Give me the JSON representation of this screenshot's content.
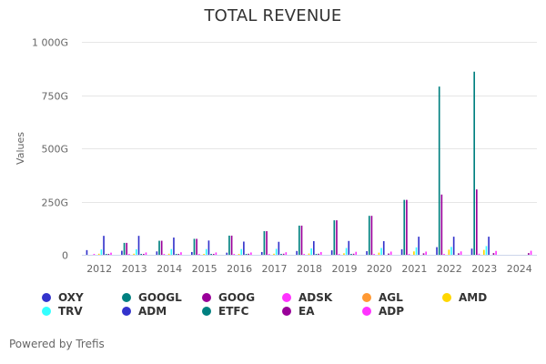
{
  "chart_data": {
    "type": "bar",
    "title": "TOTAL REVENUE",
    "xlabel": "",
    "ylabel": "Values",
    "ylim": [
      0,
      1000
    ],
    "y_unit": "G",
    "y_ticks": [
      0,
      250,
      500,
      750,
      1000
    ],
    "y_tick_labels": [
      "0",
      "250G",
      "500G",
      "750G",
      "1 000G"
    ],
    "grid": true,
    "legend_position": "bottom",
    "categories": [
      "2012",
      "2013",
      "2014",
      "2015",
      "2016",
      "2017",
      "2018",
      "2019",
      "2020",
      "2021",
      "2022",
      "2023",
      "2024"
    ],
    "series": [
      {
        "name": "OXY",
        "color": "#3333cc",
        "values": [
          22,
          19,
          16,
          13,
          10,
          13,
          18,
          21,
          17,
          26,
          36,
          29,
          null
        ]
      },
      {
        "name": "GOOGL",
        "color": "#008080",
        "values": [
          null,
          56,
          66,
          75,
          90,
          111,
          137,
          162,
          183,
          258,
          790,
          860,
          null
        ]
      },
      {
        "name": "GOOG",
        "color": "#990099",
        "values": [
          null,
          56,
          66,
          75,
          90,
          111,
          137,
          162,
          183,
          258,
          283,
          307,
          null
        ]
      },
      {
        "name": "ADSK",
        "color": "#ff33ff",
        "values": [
          2,
          2,
          2,
          3,
          2,
          2,
          2,
          3,
          4,
          4,
          4,
          5,
          null
        ]
      },
      {
        "name": "AGL",
        "color": "#ff9933",
        "values": [
          null,
          null,
          null,
          null,
          null,
          null,
          null,
          null,
          null,
          null,
          null,
          null,
          null
        ]
      },
      {
        "name": "AMD",
        "color": "#ffd700",
        "values": [
          5,
          5,
          5,
          4,
          4,
          5,
          6,
          7,
          10,
          16,
          24,
          23,
          null
        ]
      },
      {
        "name": "TRV",
        "color": "#33ffff",
        "values": [
          25,
          26,
          27,
          27,
          27,
          28,
          30,
          32,
          32,
          35,
          37,
          41,
          null
        ]
      },
      {
        "name": "ADM",
        "color": "#3333cc",
        "values": [
          89,
          89,
          81,
          67,
          62,
          61,
          64,
          65,
          64,
          85,
          85,
          85,
          null
        ]
      },
      {
        "name": "ETFC",
        "color": "#008080",
        "values": [
          2,
          2,
          2,
          2,
          2,
          2,
          3,
          3,
          null,
          null,
          null,
          null,
          null
        ]
      },
      {
        "name": "EA",
        "color": "#990099",
        "values": [
          4,
          4,
          4,
          4,
          5,
          5,
          5,
          5,
          6,
          7,
          7,
          8,
          8
        ]
      },
      {
        "name": "ADP",
        "color": "#ff33ff",
        "values": [
          10,
          11,
          12,
          11,
          11,
          12,
          13,
          14,
          15,
          15,
          16,
          18,
          19
        ]
      }
    ]
  },
  "legend": [
    {
      "label": "OXY",
      "color": "#3333cc"
    },
    {
      "label": "GOOGL",
      "color": "#008080"
    },
    {
      "label": "GOOG",
      "color": "#990099"
    },
    {
      "label": "ADSK",
      "color": "#ff33ff"
    },
    {
      "label": "AGL",
      "color": "#ff9933"
    },
    {
      "label": "AMD",
      "color": "#ffd700"
    },
    {
      "label": "TRV",
      "color": "#33ffff"
    },
    {
      "label": "ADM",
      "color": "#3333cc"
    },
    {
      "label": "ETFC",
      "color": "#008080"
    },
    {
      "label": "EA",
      "color": "#990099"
    },
    {
      "label": "ADP",
      "color": "#ff33ff"
    }
  ],
  "footer": {
    "text": "Powered by Trefis"
  }
}
